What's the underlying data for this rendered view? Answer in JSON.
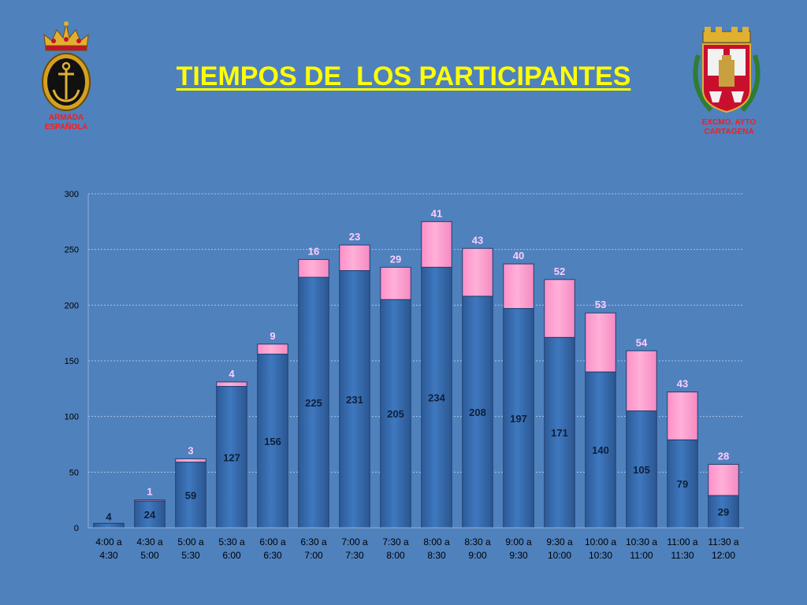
{
  "title": "TIEMPOS DE  LOS PARTICIPANTES",
  "logos": {
    "left_caption_line1": "ARMADA",
    "left_caption_line2": "ESPAÑOLA",
    "right_caption_line1": "EXCMO. AYTO",
    "right_caption_line2": "CARTAGENA"
  },
  "colors": {
    "background": "#4f81bd",
    "title": "#ffff00",
    "bar_blue": "#3a6fb3",
    "bar_pink": "#ff99cc",
    "pink_label": "#ffccff",
    "caption": "#ff1a1a"
  },
  "chart_data": {
    "type": "bar",
    "stacked": true,
    "categories": [
      [
        "4:00 a",
        "4:30"
      ],
      [
        "4:30 a",
        "5:00"
      ],
      [
        "5:00 a",
        "5:30"
      ],
      [
        "5:30 a",
        "6:00"
      ],
      [
        "6:00 a",
        "6:30"
      ],
      [
        "6:30 a",
        "7:00"
      ],
      [
        "7:00 a",
        "7:30"
      ],
      [
        "7:30 a",
        "8:00"
      ],
      [
        "8:00 a",
        "8:30"
      ],
      [
        "8:30 a",
        "9:00"
      ],
      [
        "9:00 a",
        "9:30"
      ],
      [
        "9:30 a",
        "10:00"
      ],
      [
        "10:00 a",
        "10:30"
      ],
      [
        "10:30 a",
        "11:00"
      ],
      [
        "11:00 a",
        "11:30"
      ],
      [
        "11:30 a",
        "12:00"
      ]
    ],
    "series": [
      {
        "color": "#3a6fb3",
        "values": [
          4,
          24,
          59,
          127,
          156,
          225,
          231,
          205,
          234,
          208,
          197,
          171,
          140,
          105,
          79,
          29
        ]
      },
      {
        "color": "#ff99cc",
        "values": [
          0,
          1,
          3,
          4,
          9,
          16,
          23,
          29,
          41,
          43,
          40,
          52,
          53,
          54,
          43,
          28
        ]
      }
    ],
    "ylim": [
      0,
      300
    ],
    "yticks": [
      0,
      50,
      100,
      150,
      200,
      250,
      300
    ],
    "grid": true,
    "legend": "none"
  }
}
